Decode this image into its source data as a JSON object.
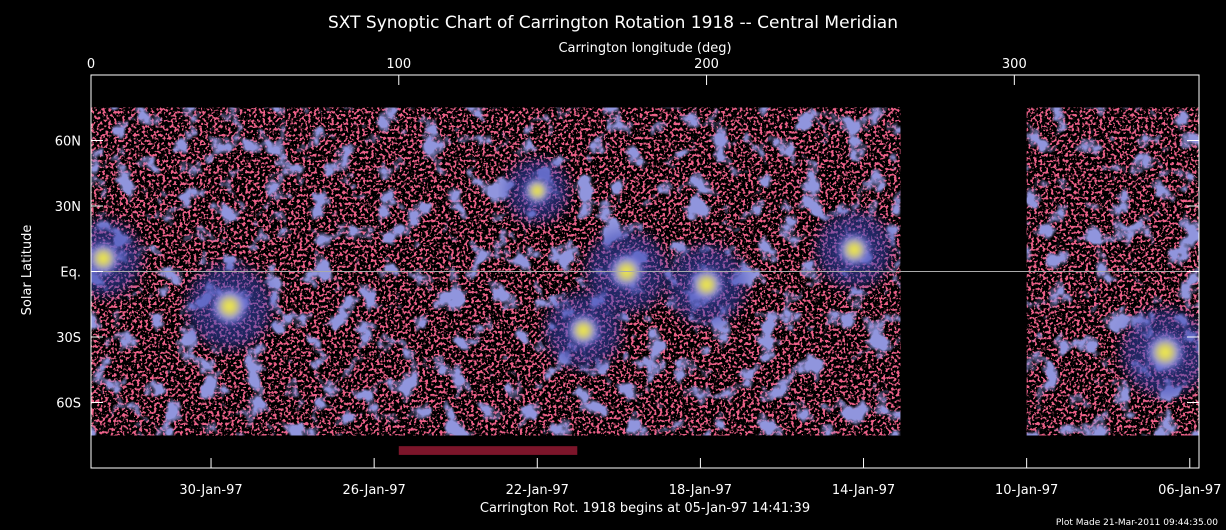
{
  "chart_data": {
    "type": "heatmap",
    "title": "SXT Synoptic Chart of Carrington Rotation 1918 -- Central Meridian",
    "x_top": {
      "label": "Carrington longitude (deg)",
      "range": [
        0,
        360
      ],
      "ticks": [
        {
          "value": 0,
          "label": "0"
        },
        {
          "value": 100,
          "label": "100"
        },
        {
          "value": 200,
          "label": "200"
        },
        {
          "value": 300,
          "label": "300"
        }
      ]
    },
    "x_bottom": {
      "label": "Carrington Rot. 1918 begins at 05-Jan-97 14:41:39",
      "ticks": [
        {
          "longitude": 39,
          "label": "30-Jan-97"
        },
        {
          "longitude": 92,
          "label": "26-Jan-97"
        },
        {
          "longitude": 145,
          "label": "22-Jan-97"
        },
        {
          "longitude": 198,
          "label": "18-Jan-97"
        },
        {
          "longitude": 251,
          "label": "14-Jan-97"
        },
        {
          "longitude": 304,
          "label": "10-Jan-97"
        },
        {
          "longitude": 357,
          "label": "06-Jan-97"
        }
      ]
    },
    "y": {
      "label": "Solar Latitude",
      "range": [
        -90,
        90
      ],
      "ticks": [
        {
          "value": 60,
          "label": "60N"
        },
        {
          "value": 30,
          "label": "30N"
        },
        {
          "value": 0,
          "label": "Eq."
        },
        {
          "value": -30,
          "label": "30S"
        },
        {
          "value": -60,
          "label": "60S"
        }
      ]
    },
    "no_data_longitudes": [
      [
        263,
        304
      ]
    ],
    "bright_regions": [
      {
        "longitude": 4,
        "latitude": 6,
        "intensity": 0.8
      },
      {
        "longitude": 45,
        "latitude": -16,
        "intensity": 0.95
      },
      {
        "longitude": 145,
        "latitude": 37,
        "intensity": 0.6
      },
      {
        "longitude": 160,
        "latitude": -27,
        "intensity": 0.8
      },
      {
        "longitude": 174,
        "latitude": 0,
        "intensity": 0.9
      },
      {
        "longitude": 200,
        "latitude": -6,
        "intensity": 0.85
      },
      {
        "longitude": 248,
        "latitude": 10,
        "intensity": 0.8
      },
      {
        "longitude": 349,
        "latitude": -37,
        "intensity": 1.0
      }
    ],
    "colormap": [
      "#000000",
      "#c81e3c",
      "#3c46b4",
      "#8c8ce6",
      "#fffa32"
    ]
  },
  "footer": {
    "plot_made": "Plot Made 21-Mar-2011 09:44:35.00"
  }
}
